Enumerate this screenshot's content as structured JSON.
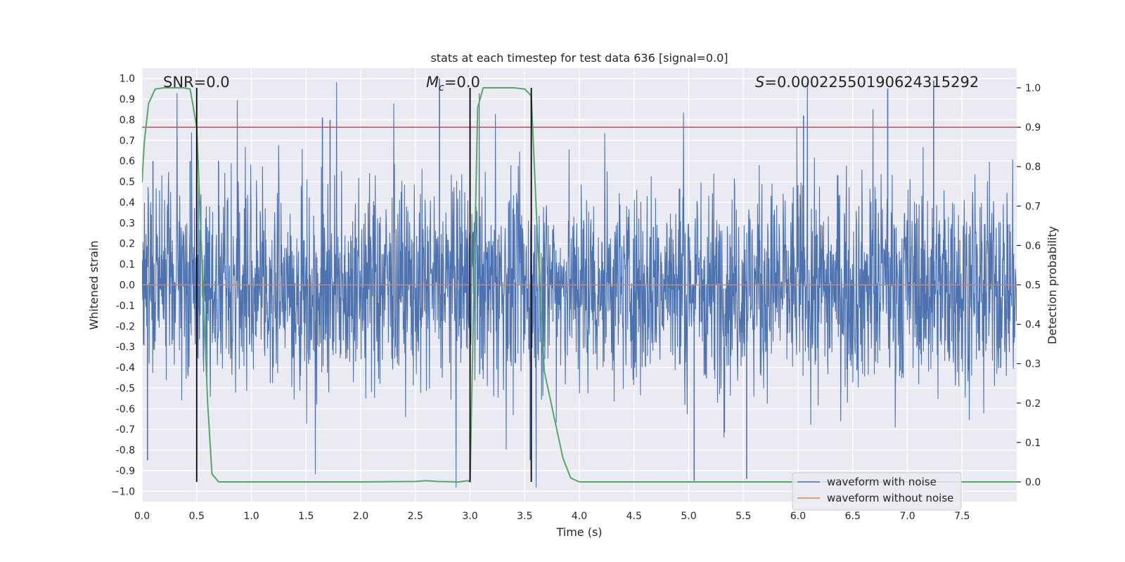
{
  "chart_data": {
    "type": "line",
    "title": "stats at each timestep for test data 636 [signal=0.0]",
    "xlabel": "Time (s)",
    "ylabel": "Whitened strain",
    "y2label": "Detection probability",
    "xlim": [
      0,
      8.0
    ],
    "ylim": [
      -1.05,
      1.05
    ],
    "y2lim": [
      -0.05,
      1.05
    ],
    "x_ticks": [
      0.0,
      0.5,
      1.0,
      1.5,
      2.0,
      2.5,
      3.0,
      3.5,
      4.0,
      4.5,
      5.0,
      5.5,
      6.0,
      6.5,
      7.0,
      7.5
    ],
    "x_tick_labels": [
      "0.0",
      "0.5",
      "1.0",
      "1.5",
      "2.0",
      "2.5",
      "3.0",
      "3.5",
      "4.0",
      "4.5",
      "5.0",
      "5.5",
      "6.0",
      "6.5",
      "7.0",
      "7.5"
    ],
    "y_ticks": [
      1.0,
      0.9,
      0.8,
      0.7,
      0.6,
      0.5,
      0.4,
      0.3,
      0.2,
      0.1,
      0.0,
      -0.1,
      -0.2,
      -0.3,
      -0.4,
      -0.5,
      -0.6,
      -0.7,
      -0.8,
      -0.9,
      -1.0
    ],
    "y_tick_labels": [
      "1.0",
      "0.9",
      "0.8",
      "0.7",
      "0.6",
      "0.5",
      "0.4",
      "0.3",
      "0.2",
      "0.1",
      "0.0",
      "-0.1",
      "-0.2",
      "-0.3",
      "-0.4",
      "-0.5",
      "-0.6",
      "-0.7",
      "-0.8",
      "-0.9",
      "−1.0"
    ],
    "y2_ticks": [
      1.0,
      0.9,
      0.8,
      0.7,
      0.6,
      0.5,
      0.4,
      0.3,
      0.2,
      0.1,
      0.0
    ],
    "y2_tick_labels": [
      "1.0",
      "0.9",
      "0.8",
      "0.7",
      "0.6",
      "0.5",
      "0.4",
      "0.3",
      "0.2",
      "0.1",
      "0.0"
    ],
    "annotations": {
      "snr": "SNR=0.0",
      "mc_symbol": "M",
      "mc_sub": "c",
      "mc_value": "=0.0",
      "s_symbol": "S",
      "s_value": "=0.00022550190624315292"
    },
    "threshold": {
      "axis": "y2",
      "value": 0.9,
      "color": "#c44e52"
    },
    "vertical_lines": {
      "x": [
        0.5,
        3.0,
        3.56
      ],
      "color": "#000000"
    },
    "series": [
      {
        "name": "waveform with noise",
        "color": "#4c72b0",
        "axis": "y",
        "description": "noisy whitened strain, amplitude mostly within ±0.4 with spikes",
        "envelope_peaks_x": [
          0.05,
          0.1,
          0.44,
          0.7,
          1.65,
          1.72,
          2.72,
          3.55,
          5.05,
          5.53,
          6.05,
          6.82,
          7.24
        ],
        "envelope_peaks_y": [
          -0.85,
          0.6,
          0.6,
          0.6,
          0.81,
          0.8,
          1.0,
          -0.85,
          -0.95,
          -0.94,
          0.82,
          0.95,
          0.99
        ]
      },
      {
        "name": "waveform without noise",
        "color": "#dd8452",
        "axis": "y",
        "x": [
          0.0,
          8.0
        ],
        "y": [
          0.0,
          0.0
        ]
      },
      {
        "name": "detection probability",
        "color": "#55a868",
        "axis": "y2",
        "x": [
          0.0,
          0.02,
          0.06,
          0.12,
          0.2,
          0.3,
          0.38,
          0.44,
          0.5,
          0.55,
          0.6,
          0.64,
          0.7,
          1.0,
          2.0,
          2.5,
          2.6,
          2.7,
          2.9,
          2.98,
          3.0,
          3.04,
          3.07,
          3.12,
          3.2,
          3.4,
          3.5,
          3.56,
          3.62,
          3.68,
          3.78,
          3.85,
          3.92,
          4.0,
          5.0,
          6.0,
          7.0,
          8.0
        ],
        "y": [
          0.76,
          0.86,
          0.96,
          0.997,
          1.0,
          1.0,
          1.0,
          0.997,
          0.9,
          0.55,
          0.2,
          0.02,
          0.0,
          0.0,
          0.0,
          0.001,
          0.003,
          0.001,
          0.0,
          0.003,
          0.0,
          0.55,
          0.95,
          1.0,
          1.0,
          1.0,
          0.997,
          0.98,
          0.6,
          0.28,
          0.15,
          0.06,
          0.01,
          0.0,
          0.0,
          0.0,
          0.0,
          0.0
        ]
      }
    ],
    "legend": {
      "position": "lower-right",
      "entries": [
        {
          "label": "waveform with noise",
          "color": "#4c72b0"
        },
        {
          "label": "waveform without noise",
          "color": "#dd8452"
        }
      ]
    },
    "style": {
      "background": "#eaeaf2",
      "grid": true,
      "grid_color": "#ffffff"
    }
  }
}
